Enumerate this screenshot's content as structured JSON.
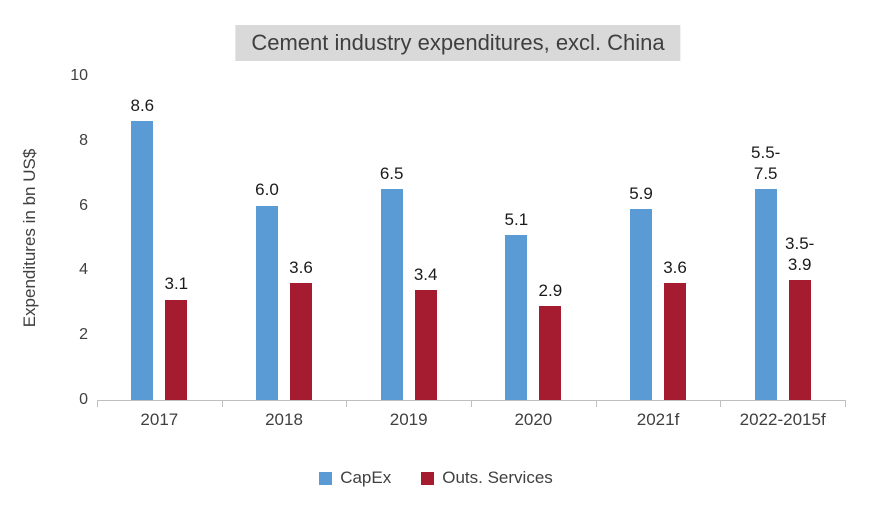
{
  "chart_data": {
    "type": "bar",
    "title": "Cement industry expenditures, excl. China",
    "title_background": "#D9D9D9",
    "ylabel": "Expenditures in bn US$",
    "xlabel": "",
    "ylim": [
      0,
      10
    ],
    "yticks": [
      0,
      2,
      4,
      6,
      8,
      10
    ],
    "grid": false,
    "legend_position": "bottom",
    "axis_color": "#BFBFBF",
    "categories": [
      "2017",
      "2018",
      "2019",
      "2020",
      "2021f",
      "2022-2015f"
    ],
    "series": [
      {
        "name": "CapEx",
        "color": "#5B9BD5",
        "values": [
          8.6,
          6.0,
          6.5,
          5.1,
          5.9,
          6.5
        ],
        "labels": [
          "8.6",
          "6.0",
          "6.5",
          "5.1",
          "5.9",
          "5.5-\n7.5"
        ]
      },
      {
        "name": "Outs. Services",
        "color": "#A51C30",
        "values": [
          3.1,
          3.6,
          3.4,
          2.9,
          3.6,
          3.7
        ],
        "labels": [
          "3.1",
          "3.6",
          "3.4",
          "2.9",
          "3.6",
          "3.5-\n3.9"
        ]
      }
    ]
  }
}
